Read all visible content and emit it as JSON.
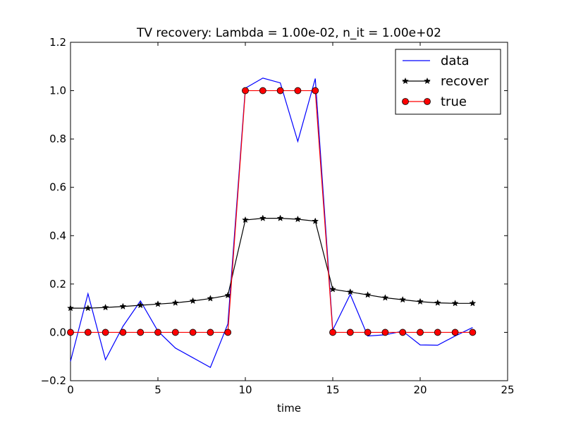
{
  "chart_data": {
    "type": "line",
    "title": "TV recovery: Lambda = 1.00e-02, n_it = 1.00e+02",
    "xlabel": "time",
    "ylabel": "",
    "xlim": [
      0,
      25
    ],
    "ylim": [
      -0.2,
      1.2
    ],
    "xticks": [
      0,
      5,
      10,
      15,
      20,
      25
    ],
    "xtick_labels": [
      "0",
      "5",
      "10",
      "15",
      "20",
      "25"
    ],
    "yticks": [
      -0.2,
      0.0,
      0.2,
      0.4,
      0.6,
      0.8,
      1.0,
      1.2
    ],
    "ytick_labels": [
      "−0.2",
      "0.0",
      "0.2",
      "0.4",
      "0.6",
      "0.8",
      "1.0",
      "1.2"
    ],
    "grid": false,
    "legend_position": "top-right",
    "x": [
      0,
      1,
      2,
      3,
      4,
      5,
      6,
      7,
      8,
      9,
      10,
      11,
      12,
      13,
      14,
      15,
      16,
      17,
      18,
      19,
      20,
      21,
      22,
      23
    ],
    "series": [
      {
        "name": "data",
        "color": "#0000ff",
        "marker": "none",
        "values": [
          -0.12,
          0.16,
          -0.113,
          0.025,
          0.13,
          0.005,
          -0.065,
          -0.105,
          -0.145,
          0.035,
          1.01,
          1.052,
          1.032,
          0.79,
          1.05,
          0.01,
          0.157,
          -0.015,
          -0.01,
          0.005,
          -0.052,
          -0.053,
          -0.015,
          0.02
        ]
      },
      {
        "name": "recover",
        "color": "#000000",
        "marker": "star",
        "values": [
          0.1,
          0.1,
          0.103,
          0.107,
          0.112,
          0.117,
          0.122,
          0.13,
          0.14,
          0.153,
          0.465,
          0.472,
          0.472,
          0.468,
          0.46,
          0.178,
          0.167,
          0.155,
          0.143,
          0.135,
          0.127,
          0.122,
          0.12,
          0.12
        ]
      },
      {
        "name": "true",
        "color": "#ff0000",
        "marker": "circle",
        "values": [
          0,
          0,
          0,
          0,
          0,
          0,
          0,
          0,
          0,
          0,
          1,
          1,
          1,
          1,
          1,
          0,
          0,
          0,
          0,
          0,
          0,
          0,
          0,
          0
        ]
      }
    ]
  }
}
